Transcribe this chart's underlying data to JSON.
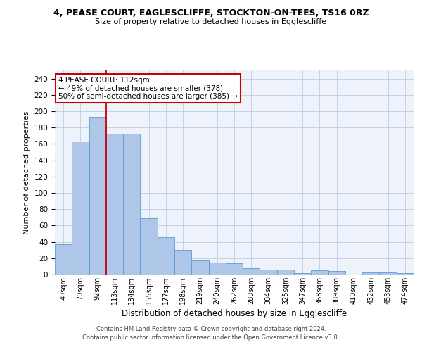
{
  "title_line1": "4, PEASE COURT, EAGLESCLIFFE, STOCKTON-ON-TEES, TS16 0RZ",
  "title_line2": "Size of property relative to detached houses in Egglescliffe",
  "xlabel": "Distribution of detached houses by size in Egglescliffe",
  "ylabel": "Number of detached properties",
  "categories": [
    "49sqm",
    "70sqm",
    "92sqm",
    "113sqm",
    "134sqm",
    "155sqm",
    "177sqm",
    "198sqm",
    "219sqm",
    "240sqm",
    "262sqm",
    "283sqm",
    "304sqm",
    "325sqm",
    "347sqm",
    "368sqm",
    "389sqm",
    "410sqm",
    "432sqm",
    "453sqm",
    "474sqm"
  ],
  "values": [
    37,
    163,
    193,
    172,
    172,
    69,
    46,
    30,
    17,
    15,
    14,
    8,
    6,
    6,
    2,
    5,
    4,
    0,
    3,
    3,
    2
  ],
  "bar_color": "#aec6e8",
  "bar_edge_color": "#5b9bd5",
  "annotation_text": "4 PEASE COURT: 112sqm\n← 49% of detached houses are smaller (378)\n50% of semi-detached houses are larger (385) →",
  "annotation_box_color": "#ffffff",
  "annotation_box_edge_color": "#cc0000",
  "vline_color": "#cc0000",
  "ylim": [
    0,
    250
  ],
  "yticks": [
    0,
    20,
    40,
    60,
    80,
    100,
    120,
    140,
    160,
    180,
    200,
    220,
    240
  ],
  "background_color": "#eef2fa",
  "footer_line1": "Contains HM Land Registry data © Crown copyright and database right 2024.",
  "footer_line2": "Contains public sector information licensed under the Open Government Licence v3.0."
}
